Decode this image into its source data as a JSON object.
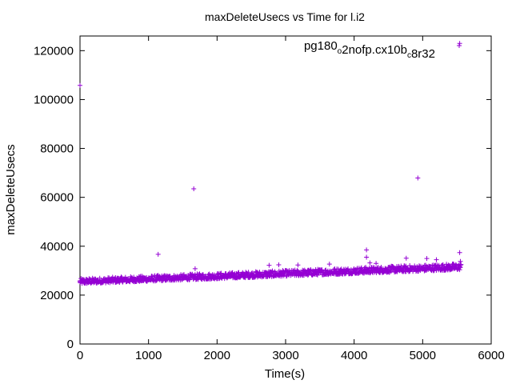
{
  "chart_data": {
    "type": "scatter",
    "title": "maxDeleteUsecs vs Time for l.i2",
    "xlabel": "Time(s)",
    "ylabel": "maxDeleteUsecs",
    "xlim": [
      0,
      6000
    ],
    "ylim": [
      0,
      126000
    ],
    "xticks": [
      0,
      1000,
      2000,
      3000,
      4000,
      5000,
      6000
    ],
    "yticks": [
      0,
      20000,
      40000,
      60000,
      80000,
      100000,
      120000
    ],
    "x_tick_labels": [
      "0",
      "1000",
      "2000",
      "3000",
      "4000",
      "5000",
      "6000"
    ],
    "y_tick_labels": [
      "0",
      "20000",
      "40000",
      "60000",
      "80000",
      "100000",
      "120000"
    ],
    "grid": false,
    "legend_position": "top-right",
    "marker": "plus",
    "color": "#9400d3",
    "series": [
      {
        "name": "pg180_o2nofp.cx10b_c8r32",
        "name_parts": [
          {
            "text": "pg180",
            "sub": false
          },
          {
            "text": "o",
            "sub": true
          },
          {
            "text": "2nofp.cx10b",
            "sub": false
          },
          {
            "text": "c",
            "sub": true
          },
          {
            "text": "8r32",
            "sub": false
          }
        ],
        "band": {
          "x_start": 0,
          "x_end": 5560,
          "y_low_start": 24600,
          "y_low_end": 30400,
          "y_high_start": 26800,
          "y_high_end": 33000
        },
        "outliers": [
          {
            "x": 0,
            "y": 105800
          },
          {
            "x": 0,
            "y": 25500
          },
          {
            "x": 1140,
            "y": 36700
          },
          {
            "x": 1660,
            "y": 63500
          },
          {
            "x": 1680,
            "y": 30800
          },
          {
            "x": 2760,
            "y": 32200
          },
          {
            "x": 2900,
            "y": 32400
          },
          {
            "x": 3180,
            "y": 32300
          },
          {
            "x": 3640,
            "y": 32700
          },
          {
            "x": 4180,
            "y": 38500
          },
          {
            "x": 4180,
            "y": 35500
          },
          {
            "x": 4230,
            "y": 33200
          },
          {
            "x": 4320,
            "y": 33000
          },
          {
            "x": 4760,
            "y": 35100
          },
          {
            "x": 4930,
            "y": 67900
          },
          {
            "x": 5060,
            "y": 35000
          },
          {
            "x": 5200,
            "y": 34500
          },
          {
            "x": 5540,
            "y": 37400
          },
          {
            "x": 5540,
            "y": 123000
          },
          {
            "x": 5550,
            "y": 33800
          }
        ]
      }
    ]
  }
}
